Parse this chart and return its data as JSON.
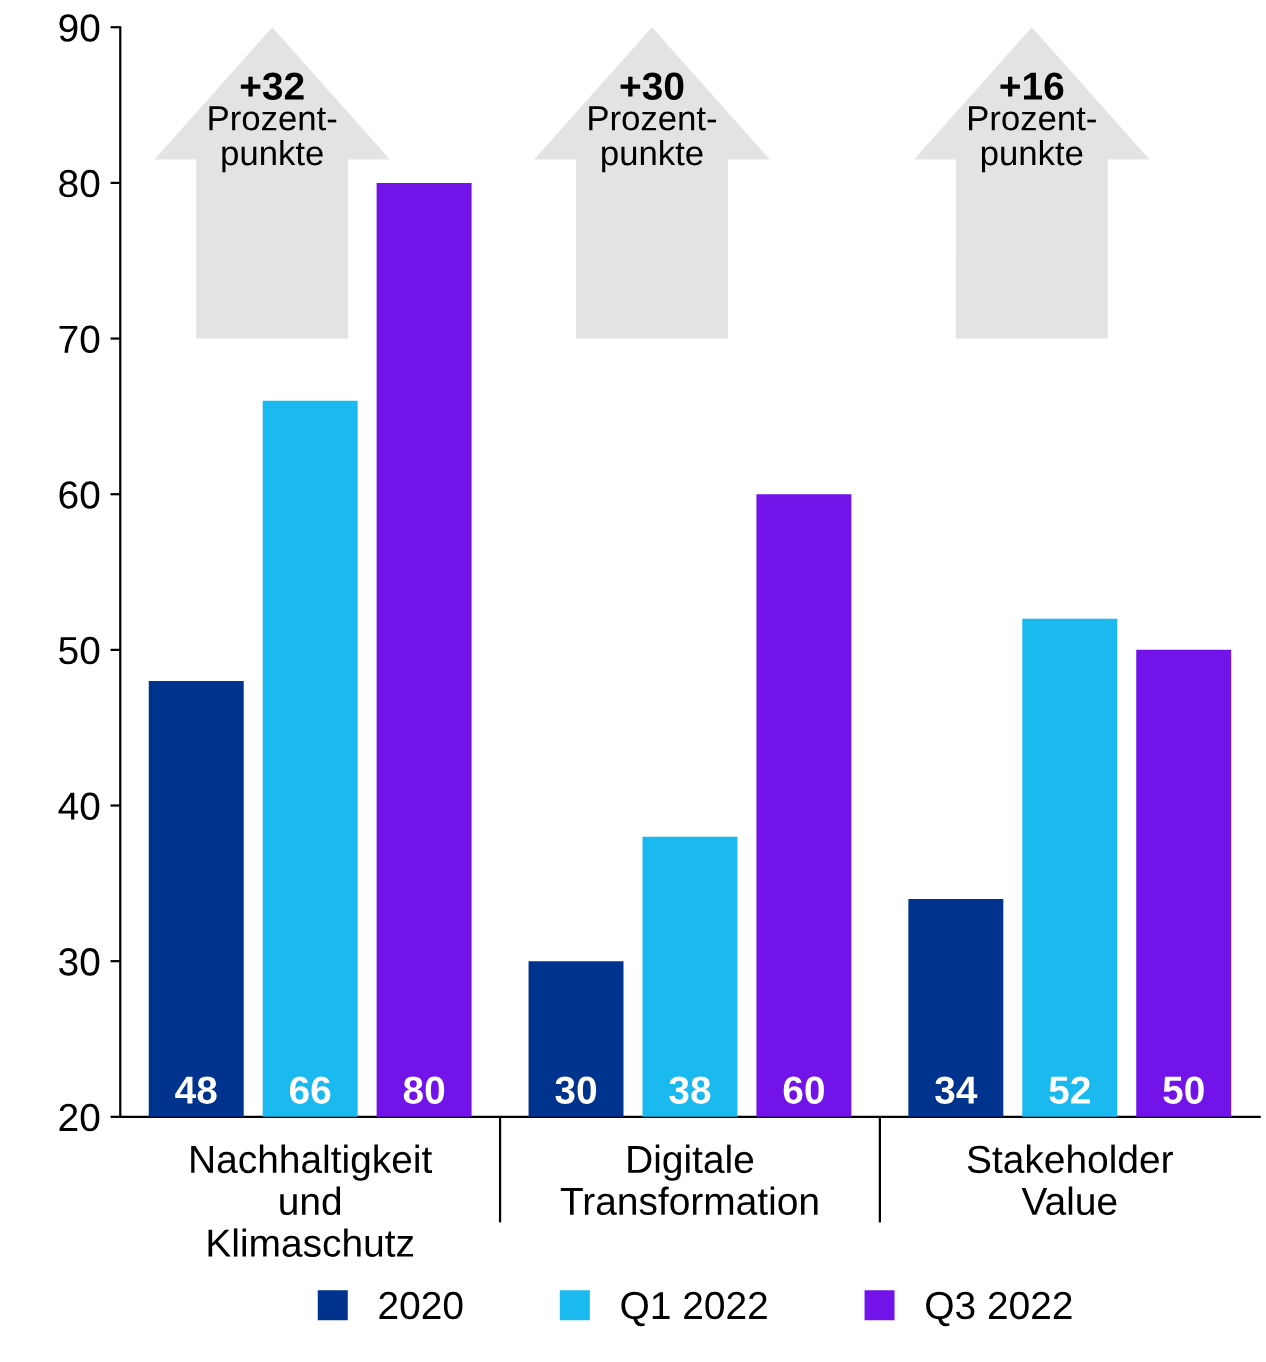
{
  "chart_data": {
    "type": "bar",
    "categories": [
      "Nachhaltigkeit\nund\nKlimaschutz",
      "Digitale\nTransformation",
      "Stakeholder\nValue"
    ],
    "series": [
      {
        "name": "2020",
        "color": "#00338d",
        "values": [
          48,
          30,
          34
        ]
      },
      {
        "name": "Q1 2022",
        "color": "#1ab9f0",
        "values": [
          66,
          38,
          52
        ]
      },
      {
        "name": "Q3 2022",
        "color": "#7213ea",
        "values": [
          80,
          60,
          50
        ]
      }
    ],
    "ylim": [
      20,
      90
    ],
    "yticks": [
      20,
      30,
      40,
      50,
      60,
      70,
      80,
      90
    ],
    "data_labels": true,
    "grid": false,
    "legend": "bottom",
    "annotations": [
      "+32\nProzent-\npunkte",
      "+30\nProzent-\npunkte",
      "+16\nProzent-\npunkte"
    ]
  }
}
